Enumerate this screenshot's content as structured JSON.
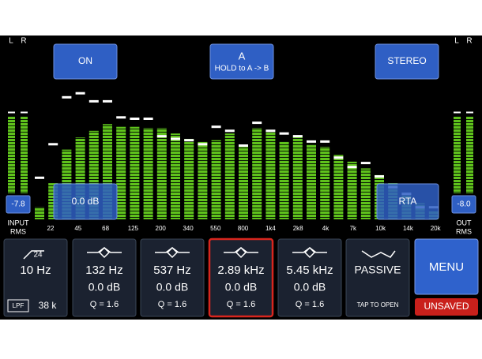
{
  "meters": {
    "input": {
      "channels": [
        "L",
        "R"
      ],
      "levels": [
        78,
        78
      ],
      "value": "-7.8",
      "label": [
        "INPUT",
        "RMS"
      ]
    },
    "output": {
      "channels": [
        "L",
        "R"
      ],
      "levels": [
        78,
        78
      ],
      "value": "-8.0",
      "label": [
        "OUT",
        "RMS"
      ]
    }
  },
  "buttons": {
    "on": "ON",
    "ab": {
      "title": "A",
      "subtitle": "HOLD to A -> B"
    },
    "stereo": "STEREO",
    "gain": "0.0 dB",
    "rta": "RTA"
  },
  "rta": {
    "frequency_labels": [
      "22",
      "45",
      "68",
      "125",
      "200",
      "340",
      "550",
      "800",
      "1k4",
      "2k8",
      "4k",
      "7k",
      "10k",
      "14k",
      "20k"
    ],
    "levels": [
      9,
      27,
      52,
      61,
      66,
      71,
      69,
      69,
      68,
      68,
      64,
      60,
      58,
      59,
      64,
      55,
      68,
      65,
      58,
      62,
      56,
      54,
      48,
      43,
      38,
      33,
      27,
      19,
      12,
      6
    ],
    "peaks": [
      31,
      56,
      91,
      94,
      88,
      88,
      76,
      75,
      75,
      62,
      60,
      59,
      56,
      69,
      66,
      55,
      72,
      66,
      64,
      62,
      58,
      58,
      46,
      39,
      42,
      32,
      24,
      19,
      9,
      9
    ]
  },
  "filter": {
    "slope": "24",
    "freq": "10 Hz",
    "lpf_label": "LPF",
    "lpf_value": "38 k"
  },
  "bands": [
    {
      "freq": "132 Hz",
      "gain": "0.0 dB",
      "q": "Q = 1.6"
    },
    {
      "freq": "537 Hz",
      "gain": "0.0 dB",
      "q": "Q = 1.6"
    },
    {
      "freq": "2.89 kHz",
      "gain": "0.0 dB",
      "q": "Q = 1.6"
    },
    {
      "freq": "5.45 kHz",
      "gain": "0.0 dB",
      "q": "Q = 1.6"
    }
  ],
  "passive": {
    "title": "PASSIVE",
    "hint": "TAP TO OPEN"
  },
  "menu": "MENU",
  "status": "UNSAVED"
}
